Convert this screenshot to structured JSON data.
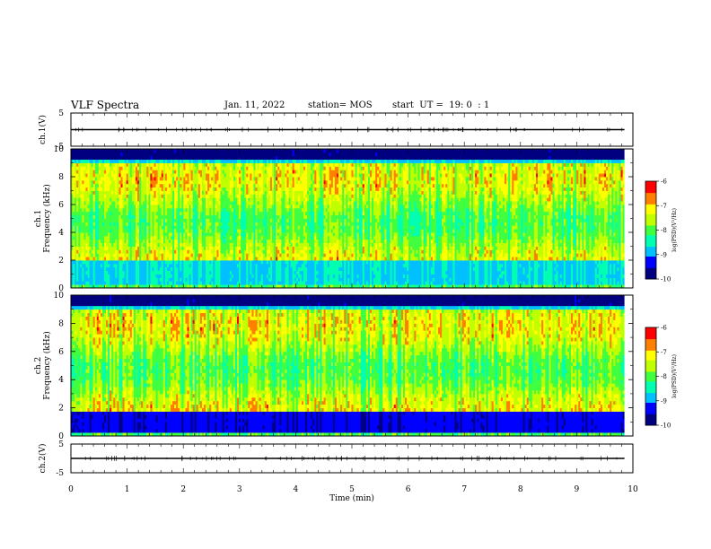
{
  "header": {
    "title": "VLF Spectra",
    "date": "Jan. 11, 2022",
    "station": "station= MOS",
    "start": "start  UT =  19: 0  : 1"
  },
  "chart_data": [
    {
      "type": "line",
      "panel": "ch1-waveform",
      "ylabel": "ch.1(V)",
      "ylim": [
        -5,
        5
      ],
      "y_ticks": [
        "5",
        "-5"
      ],
      "x": [
        0,
        9.85
      ],
      "values": [
        0,
        0
      ]
    },
    {
      "type": "heatmap",
      "panel": "ch1-spectrogram",
      "ylabel": "ch.1\nFrequency (kHz)",
      "ylim": [
        0,
        10
      ],
      "y_ticks": [
        "0",
        "2",
        "4",
        "6",
        "8",
        "10"
      ],
      "xlim": [
        0,
        9.85
      ],
      "colorbar": {
        "label": "log(PSD)(V²/Hz)",
        "range": [
          -10,
          -6
        ],
        "ticks": [
          "-6",
          "-7",
          "-8",
          "-9",
          "-10"
        ],
        "colormap": [
          "#000080",
          "#0000ff",
          "#00c0ff",
          "#00ffb0",
          "#40ff40",
          "#c0ff00",
          "#ffff00",
          "#ff8000",
          "#ff0000",
          "#ffffff"
        ]
      }
    },
    {
      "type": "heatmap",
      "panel": "ch2-spectrogram",
      "ylabel": "ch.2\nFrequency (kHz)",
      "ylim": [
        0,
        10
      ],
      "y_ticks": [
        "0",
        "2",
        "4",
        "6",
        "8",
        "10"
      ],
      "xlim": [
        0,
        9.85
      ],
      "colorbar": {
        "label": "log(PSD)(V²/Hz)",
        "range": [
          -10,
          -6
        ],
        "ticks": [
          "-6",
          "-7",
          "-8",
          "-9",
          "-10"
        ],
        "colormap": [
          "#000080",
          "#0000ff",
          "#00c0ff",
          "#00ffb0",
          "#40ff40",
          "#c0ff00",
          "#ffff00",
          "#ff8000",
          "#ff0000",
          "#ffffff"
        ]
      }
    },
    {
      "type": "line",
      "panel": "ch2-waveform",
      "ylabel": "ch.2(V)",
      "ylim": [
        -5,
        5
      ],
      "y_ticks": [
        "5",
        "-5"
      ],
      "x": [
        0,
        9.85
      ],
      "values": [
        0,
        0
      ]
    }
  ],
  "x_axis": {
    "label": "Time (min)",
    "ticks": [
      "0",
      "1",
      "2",
      "3",
      "4",
      "5",
      "6",
      "7",
      "8",
      "9",
      "10"
    ],
    "range": [
      0,
      10
    ]
  }
}
